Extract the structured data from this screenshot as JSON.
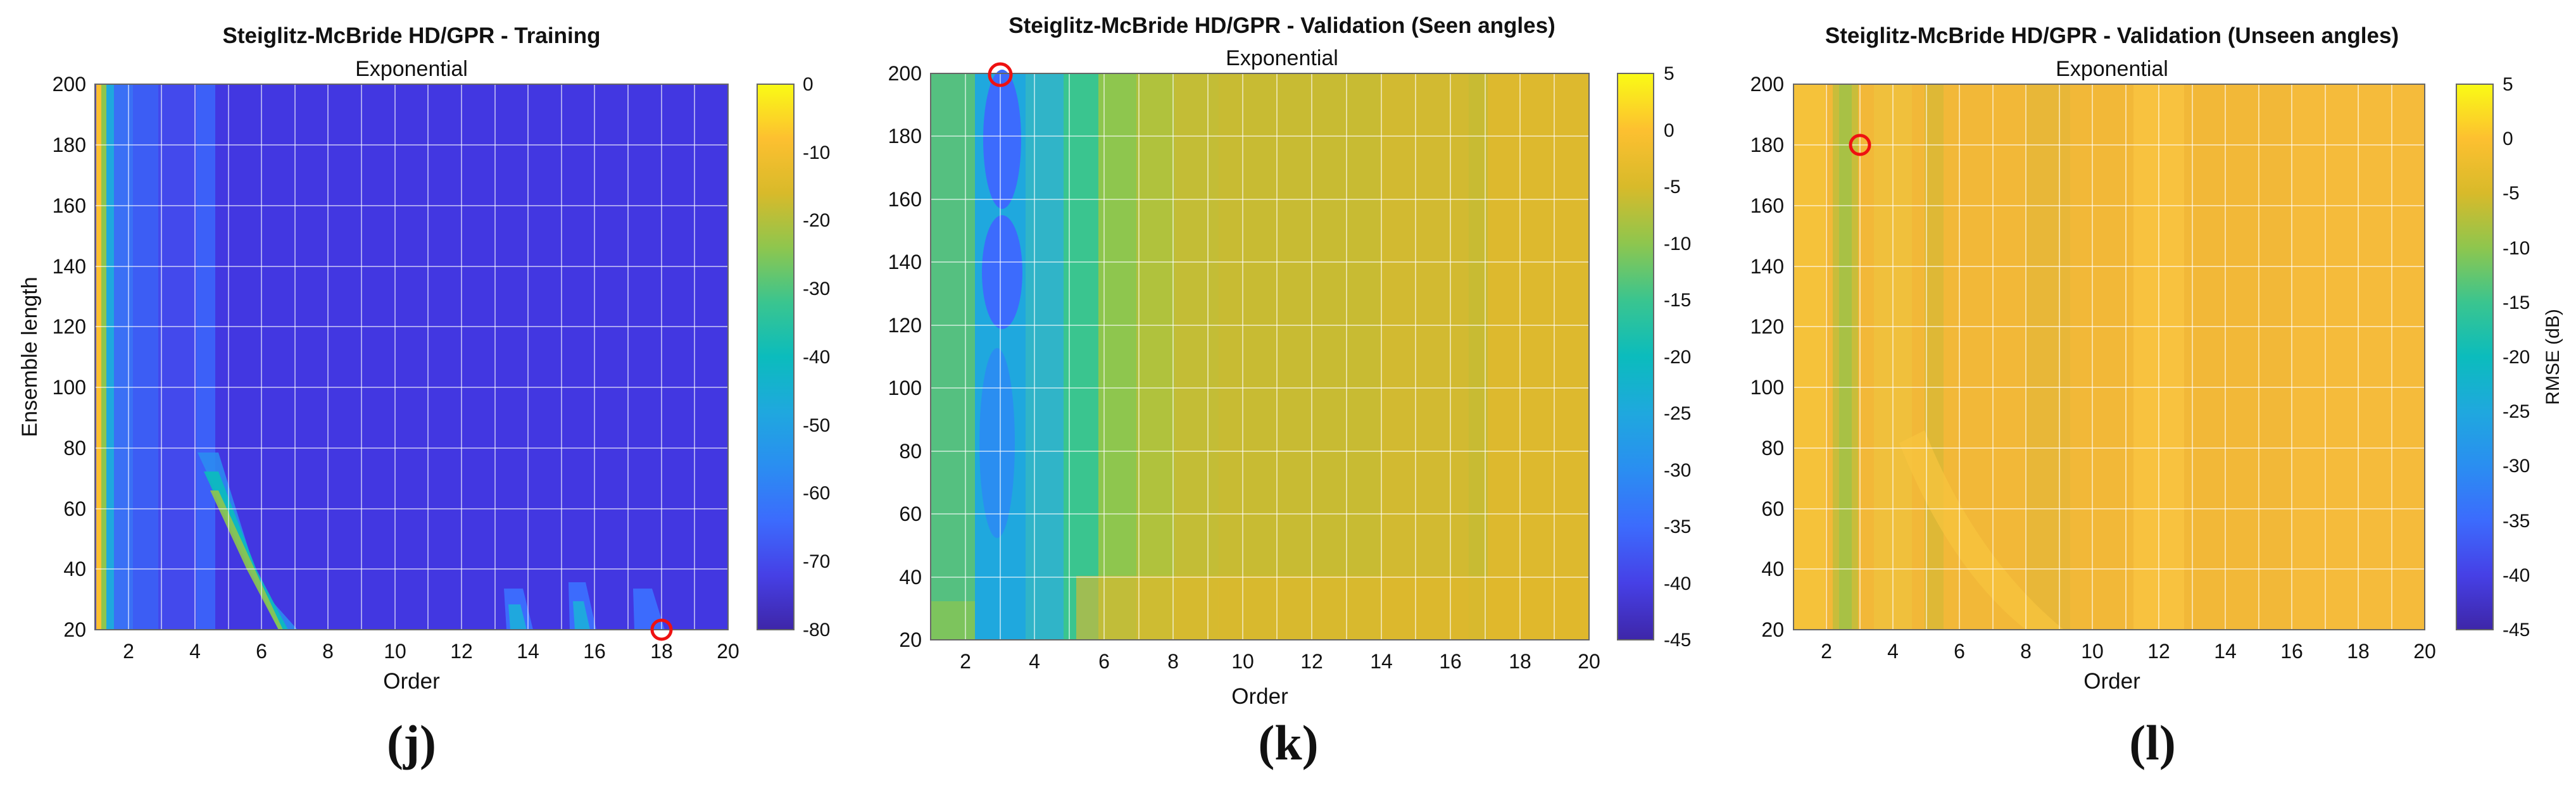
{
  "chart_data": [
    {
      "type": "heatmap",
      "title": "Steiglitz-McBride HD/GPR - Training",
      "subtitle": "Exponential",
      "xlabel": "Order",
      "ylabel": "Ensemble length",
      "colorbar_label": "",
      "x_range": [
        1,
        20
      ],
      "y_range": [
        20,
        200
      ],
      "x_ticks": [
        2,
        4,
        6,
        8,
        10,
        12,
        14,
        16,
        18,
        20
      ],
      "y_ticks": [
        20,
        40,
        60,
        80,
        100,
        120,
        140,
        160,
        180,
        200
      ],
      "clim": [
        -80,
        0
      ],
      "colorbar_ticks": [
        0,
        -10,
        -20,
        -30,
        -40,
        -50,
        -60,
        -70,
        -80
      ],
      "colormap": "parula",
      "optimum_marker": {
        "order": 18,
        "ensemble_length": 20,
        "color": "#ee1111"
      },
      "caption": "(j)"
    },
    {
      "type": "heatmap",
      "title": "Steiglitz-McBride HD/GPR - Validation (Seen angles)",
      "subtitle": "Exponential",
      "xlabel": "Order",
      "ylabel": "",
      "colorbar_label": "",
      "x_range": [
        1,
        20
      ],
      "y_range": [
        20,
        200
      ],
      "x_ticks": [
        2,
        4,
        6,
        8,
        10,
        12,
        14,
        16,
        18,
        20
      ],
      "y_ticks": [
        20,
        40,
        60,
        80,
        100,
        120,
        140,
        160,
        180,
        200
      ],
      "clim": [
        -45,
        5
      ],
      "colorbar_ticks": [
        5,
        0,
        -5,
        -10,
        -15,
        -20,
        -25,
        -30,
        -35,
        -40,
        -45
      ],
      "colormap": "parula",
      "optimum_marker": {
        "order": 3,
        "ensemble_length": 200,
        "color": "#ee1111"
      },
      "caption": "(k)"
    },
    {
      "type": "heatmap",
      "title": "Steiglitz-McBride HD/GPR - Validation (Unseen angles)",
      "subtitle": "Exponential",
      "xlabel": "Order",
      "ylabel": "",
      "colorbar_label": "RMSE (dB)",
      "x_range": [
        1,
        20
      ],
      "y_range": [
        20,
        200
      ],
      "x_ticks": [
        2,
        4,
        6,
        8,
        10,
        12,
        14,
        16,
        18,
        20
      ],
      "y_ticks": [
        20,
        40,
        60,
        80,
        100,
        120,
        140,
        160,
        180,
        200
      ],
      "clim": [
        -45,
        5
      ],
      "colorbar_ticks": [
        5,
        0,
        -5,
        -10,
        -15,
        -20,
        -25,
        -30,
        -35,
        -40,
        -45
      ],
      "colormap": "parula",
      "optimum_marker": {
        "order": 3,
        "ensemble_length": 180,
        "color": "#ee1111"
      },
      "caption": "(l)"
    }
  ]
}
